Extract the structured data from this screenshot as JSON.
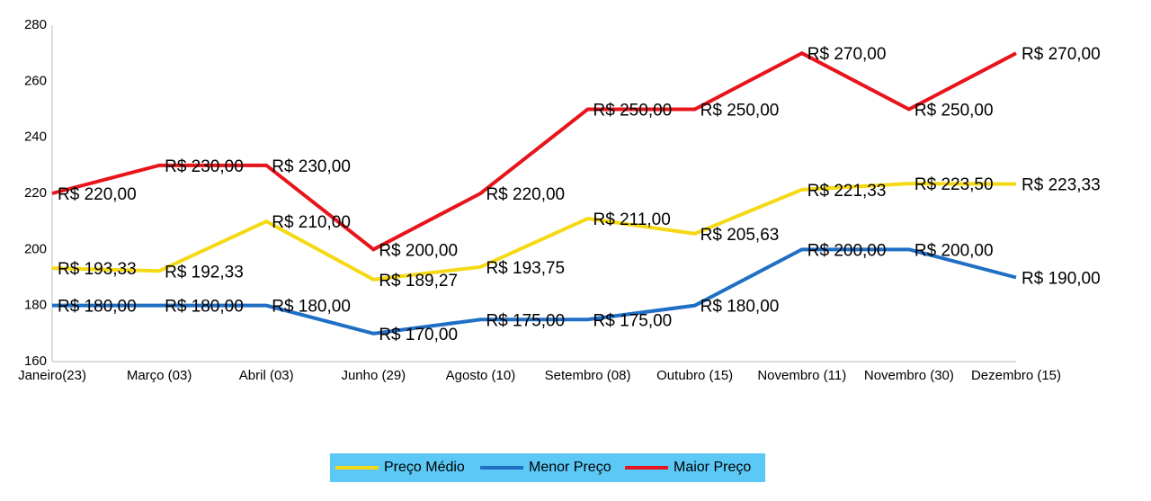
{
  "chart_data": {
    "type": "line",
    "categories": [
      "Janeiro(23)",
      "Março (03)",
      "Abril (03)",
      "Junho (29)",
      "Agosto (10)",
      "Setembro (08)",
      "Outubro (15)",
      "Novembro (11)",
      "Novembro (30)",
      "Dezembro (15)"
    ],
    "ylim": [
      160,
      280
    ],
    "yticks": [
      160,
      180,
      200,
      220,
      240,
      260,
      280
    ],
    "grid": false,
    "legend": "bottom",
    "series": [
      {
        "name": "Preço Médio",
        "color": "#f5d915",
        "values": [
          193.33,
          192.33,
          210,
          189.27,
          193.75,
          211,
          205.63,
          221.33,
          223.5,
          223.33
        ],
        "value_labels": [
          "R$ 193,33",
          "R$ 192,33",
          "R$ 210,00",
          "R$ 189,27",
          "R$ 193,75",
          "R$ 211,00",
          "R$ 205,63",
          "R$ 221,33",
          "R$ 223,50",
          "R$ 223,33"
        ]
      },
      {
        "name": "Menor Preço",
        "color": "#1f6fc5",
        "values": [
          180,
          180,
          180,
          170,
          175,
          175,
          180,
          200,
          200,
          190
        ],
        "value_labels": [
          "R$ 180,00",
          "R$ 180,00",
          "R$ 180,00",
          "R$ 170,00",
          "R$ 175,00",
          "R$ 175,00",
          "R$ 180,00",
          "R$ 200,00",
          "R$ 200,00",
          "R$ 190,00"
        ]
      },
      {
        "name": "Maior Preço",
        "color": "#e8141b",
        "values": [
          220,
          230,
          230,
          200,
          220,
          250,
          250,
          270,
          250,
          270
        ],
        "value_labels": [
          "R$ 220,00",
          "R$ 230,00",
          "R$ 230,00",
          "R$ 200,00",
          "R$ 220,00",
          "R$ 250,00",
          "R$ 250,00",
          "R$ 270,00",
          "R$ 250,00",
          "R$ 270,00"
        ]
      }
    ]
  }
}
